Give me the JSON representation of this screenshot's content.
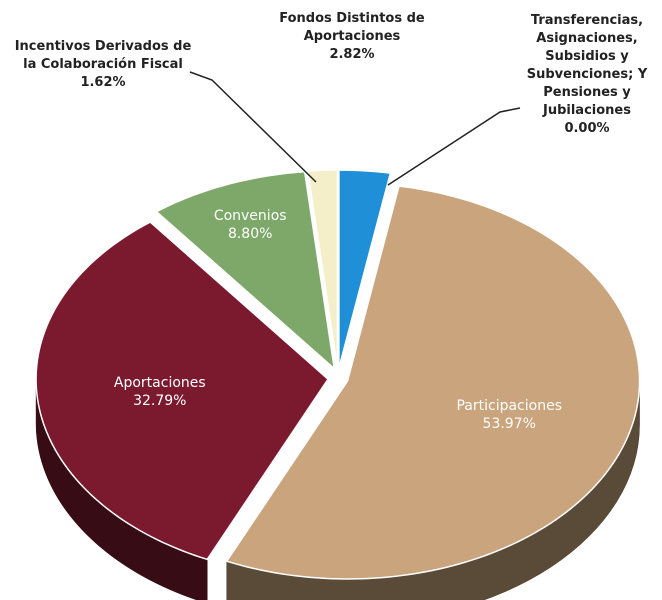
{
  "chart_data": {
    "type": "pie",
    "categories": [
      "Fondos Distintos de Aportaciones",
      "Transferencias, Asignaciones, Subsidios y Subvenciones; Y Pensiones y Jubilaciones",
      "Participaciones",
      "Aportaciones",
      "Convenios",
      "Incentivos Derivados de la Colaboración Fiscal"
    ],
    "values": [
      2.82,
      0.0,
      53.97,
      32.79,
      8.8,
      1.62
    ],
    "value_labels": [
      "2.82%",
      "0.00%",
      "53.97%",
      "32.79%",
      "8.80%",
      "1.62%"
    ],
    "colors": [
      "#1f8fd8",
      "#f08a2a",
      "#c9a47c",
      "#7b1a2f",
      "#7ea86a",
      "#f4efc9"
    ]
  }
}
